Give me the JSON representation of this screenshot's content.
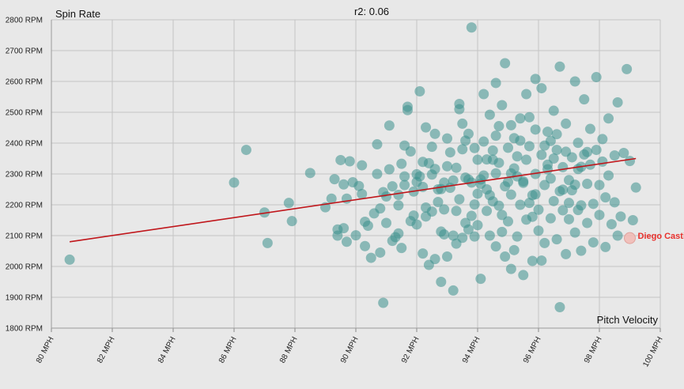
{
  "chart_data": {
    "type": "scatter",
    "title": "r2: 0.06",
    "xlabel": "Pitch Velocity",
    "ylabel": "Spin Rate",
    "xlim": [
      80,
      100
    ],
    "ylim": [
      1800,
      2800
    ],
    "x_ticks": [
      "80 MPH",
      "82 MPH",
      "84 MPH",
      "86 MPH",
      "88 MPH",
      "90 MPH",
      "92 MPH",
      "94 MPH",
      "96 MPH",
      "98 MPH",
      "100 MPH"
    ],
    "y_ticks": [
      "1800 RPM",
      "1900 RPM",
      "2000 RPM",
      "2100 RPM",
      "2200 RPM",
      "2300 RPM",
      "2400 RPM",
      "2500 RPM",
      "2600 RPM",
      "2700 RPM",
      "2800 RPM"
    ],
    "grid": true,
    "point_color": "#3a8f8c",
    "trendline_color": "#c0161b",
    "trendline": {
      "x": [
        80.6,
        99.2
      ],
      "y": [
        2080,
        2350
      ]
    },
    "highlight": {
      "name": "Diego Castillo",
      "x": 99.0,
      "y": 2092,
      "color": "#e8302c"
    },
    "points": [
      [
        80.6,
        2022
      ],
      [
        86.0,
        2272
      ],
      [
        86.4,
        2378
      ],
      [
        87.0,
        2175
      ],
      [
        87.1,
        2076
      ],
      [
        87.8,
        2206
      ],
      [
        87.9,
        2147
      ],
      [
        88.5,
        2303
      ],
      [
        89.0,
        2192
      ],
      [
        89.2,
        2220
      ],
      [
        89.3,
        2283
      ],
      [
        89.4,
        2120
      ],
      [
        89.4,
        2100
      ],
      [
        89.5,
        2345
      ],
      [
        89.6,
        2266
      ],
      [
        89.7,
        2220
      ],
      [
        89.7,
        2080
      ],
      [
        89.8,
        2341
      ],
      [
        89.9,
        2273
      ],
      [
        90.0,
        2101
      ],
      [
        90.2,
        2328
      ],
      [
        90.2,
        2235
      ],
      [
        90.3,
        2145
      ],
      [
        90.3,
        2066
      ],
      [
        90.5,
        2028
      ],
      [
        90.6,
        2172
      ],
      [
        90.7,
        2396
      ],
      [
        90.7,
        2300
      ],
      [
        90.8,
        2045
      ],
      [
        90.9,
        2241
      ],
      [
        91.0,
        2141
      ],
      [
        91.1,
        2315
      ],
      [
        91.2,
        2083
      ],
      [
        91.3,
        2095
      ],
      [
        91.4,
        2198
      ],
      [
        91.4,
        2232
      ],
      [
        91.5,
        2333
      ],
      [
        91.6,
        2392
      ],
      [
        91.6,
        2264
      ],
      [
        91.7,
        2507
      ],
      [
        91.7,
        2518
      ],
      [
        91.8,
        2373
      ],
      [
        91.9,
        2165
      ],
      [
        92.0,
        2274
      ],
      [
        92.0,
        2136
      ],
      [
        92.1,
        2292
      ],
      [
        92.1,
        2568
      ],
      [
        92.2,
        2258
      ],
      [
        92.2,
        2042
      ],
      [
        92.3,
        2451
      ],
      [
        92.3,
        2191
      ],
      [
        92.4,
        2005
      ],
      [
        92.5,
        2298
      ],
      [
        92.5,
        2178
      ],
      [
        92.6,
        2024
      ],
      [
        92.6,
        2430
      ],
      [
        92.7,
        2250
      ],
      [
        92.8,
        2113
      ],
      [
        92.8,
        1950
      ],
      [
        92.9,
        2104
      ],
      [
        92.9,
        2272
      ],
      [
        93.0,
        2032
      ],
      [
        93.0,
        2415
      ],
      [
        93.1,
        2255
      ],
      [
        93.2,
        2100
      ],
      [
        93.2,
        1922
      ],
      [
        93.3,
        2320
      ],
      [
        93.3,
        2180
      ],
      [
        93.4,
        2510
      ],
      [
        93.4,
        2218
      ],
      [
        93.5,
        2380
      ],
      [
        93.5,
        2093
      ],
      [
        93.6,
        2288
      ],
      [
        93.7,
        2430
      ],
      [
        93.7,
        2120
      ],
      [
        93.8,
        2272
      ],
      [
        93.8,
        2775
      ],
      [
        93.9,
        2201
      ],
      [
        93.9,
        2384
      ],
      [
        94.0,
        2346
      ],
      [
        94.0,
        2134
      ],
      [
        94.1,
        1960
      ],
      [
        94.1,
        2268
      ],
      [
        94.2,
        2295
      ],
      [
        94.2,
        2405
      ],
      [
        94.3,
        2180
      ],
      [
        94.3,
        2250
      ],
      [
        94.4,
        2100
      ],
      [
        94.4,
        2492
      ],
      [
        94.5,
        2376
      ],
      [
        94.5,
        2211
      ],
      [
        94.6,
        2065
      ],
      [
        94.6,
        2302
      ],
      [
        94.7,
        2455
      ],
      [
        94.7,
        2336
      ],
      [
        94.8,
        2167
      ],
      [
        94.8,
        2523
      ],
      [
        94.9,
        2260
      ],
      [
        94.9,
        2032
      ],
      [
        95.0,
        2385
      ],
      [
        95.0,
        2146
      ],
      [
        95.1,
        2233
      ],
      [
        95.1,
        2458
      ],
      [
        95.2,
        2318
      ],
      [
        95.2,
        2053
      ],
      [
        95.3,
        2292
      ],
      [
        95.3,
        2097
      ],
      [
        95.4,
        2200
      ],
      [
        95.4,
        2408
      ],
      [
        95.5,
        1972
      ],
      [
        95.5,
        2276
      ],
      [
        95.6,
        2346
      ],
      [
        95.6,
        2152
      ],
      [
        95.7,
        2390
      ],
      [
        95.7,
        2484
      ],
      [
        95.8,
        2231
      ],
      [
        95.8,
        2018
      ],
      [
        95.9,
        2444
      ],
      [
        95.9,
        2300
      ],
      [
        96.0,
        2184
      ],
      [
        96.0,
        2116
      ],
      [
        96.1,
        2362
      ],
      [
        96.1,
        2578
      ],
      [
        96.2,
        2264
      ],
      [
        96.2,
        2076
      ],
      [
        96.3,
        2330
      ],
      [
        96.3,
        2437
      ],
      [
        96.4,
        2156
      ],
      [
        96.4,
        2285
      ],
      [
        96.5,
        2505
      ],
      [
        96.5,
        2212
      ],
      [
        96.6,
        2088
      ],
      [
        96.6,
        2378
      ],
      [
        96.7,
        2244
      ],
      [
        96.7,
        2648
      ],
      [
        96.8,
        2322
      ],
      [
        96.8,
        2182
      ],
      [
        96.9,
        2040
      ],
      [
        96.9,
        2463
      ],
      [
        97.0,
        2280
      ],
      [
        97.0,
        2153
      ],
      [
        97.1,
        2354
      ],
      [
        97.1,
        2247
      ],
      [
        97.2,
        2600
      ],
      [
        97.2,
        2110
      ],
      [
        97.3,
        2401
      ],
      [
        97.3,
        2316
      ],
      [
        97.4,
        2198
      ],
      [
        97.4,
        2051
      ],
      [
        97.5,
        2542
      ],
      [
        97.5,
        2363
      ],
      [
        97.6,
        2268
      ],
      [
        97.6,
        2141
      ],
      [
        97.7,
        2446
      ],
      [
        97.7,
        2330
      ],
      [
        97.8,
        2203
      ],
      [
        97.8,
        2078
      ],
      [
        97.9,
        2614
      ],
      [
        97.9,
        2378
      ],
      [
        98.0,
        2264
      ],
      [
        98.0,
        2167
      ],
      [
        98.1,
        2413
      ],
      [
        98.1,
        2340
      ],
      [
        98.2,
        2224
      ],
      [
        98.2,
        2063
      ],
      [
        98.3,
        2480
      ],
      [
        98.3,
        2295
      ],
      [
        98.4,
        2137
      ],
      [
        98.5,
        2360
      ],
      [
        98.5,
        2208
      ],
      [
        98.6,
        2100
      ],
      [
        98.6,
        2532
      ],
      [
        98.7,
        2162
      ],
      [
        98.8,
        2368
      ],
      [
        98.9,
        2640
      ],
      [
        99.0,
        2342
      ],
      [
        99.2,
        2256
      ],
      [
        99.1,
        2150
      ],
      [
        93.5,
        2463
      ],
      [
        94.9,
        2659
      ],
      [
        95.6,
        2559
      ],
      [
        91.5,
        2060
      ],
      [
        92.7,
        2209
      ],
      [
        93.8,
        2164
      ],
      [
        94.6,
        2424
      ],
      [
        95.1,
        1992
      ],
      [
        95.9,
        2234
      ],
      [
        96.4,
        2407
      ],
      [
        90.8,
        2188
      ],
      [
        91.2,
        2260
      ],
      [
        92.4,
        2335
      ],
      [
        93.1,
        2370
      ],
      [
        93.6,
        2141
      ],
      [
        94.2,
        2559
      ],
      [
        94.8,
        2112
      ],
      [
        95.3,
        2357
      ],
      [
        96.1,
        2019
      ],
      [
        96.9,
        2372
      ],
      [
        97.3,
        2183
      ],
      [
        90.4,
        2132
      ],
      [
        91.9,
        2243
      ],
      [
        92.6,
        2316
      ],
      [
        93.3,
        2074
      ],
      [
        94.1,
        2282
      ],
      [
        94.7,
        2197
      ],
      [
        95.4,
        2480
      ],
      [
        96.2,
        2392
      ],
      [
        96.7,
        1868
      ],
      [
        91.4,
        2107
      ],
      [
        92.0,
        2299
      ],
      [
        92.8,
        2251
      ],
      [
        93.6,
        2408
      ],
      [
        94.3,
        2347
      ],
      [
        95.0,
        2274
      ],
      [
        95.8,
        2161
      ],
      [
        96.6,
        2429
      ],
      [
        97.4,
        2323
      ],
      [
        89.6,
        2124
      ],
      [
        90.9,
        1882
      ],
      [
        91.6,
        2292
      ],
      [
        92.3,
        2162
      ],
      [
        93.0,
        2325
      ],
      [
        93.7,
        2282
      ],
      [
        94.4,
        2231
      ],
      [
        95.2,
        2416
      ],
      [
        95.9,
        2608
      ],
      [
        96.8,
        2249
      ],
      [
        97.6,
        2371
      ],
      [
        90.1,
        2261
      ],
      [
        91.0,
        2227
      ],
      [
        91.8,
        2147
      ],
      [
        92.5,
        2388
      ],
      [
        93.2,
        2279
      ],
      [
        93.9,
        2097
      ],
      [
        94.5,
        2346
      ],
      [
        95.5,
        2271
      ],
      [
        96.3,
        2315
      ],
      [
        97.0,
        2206
      ],
      [
        92.2,
        2339
      ],
      [
        93.4,
        2527
      ],
      [
        94.0,
        2236
      ],
      [
        94.6,
        2595
      ],
      [
        95.1,
        2302
      ],
      [
        95.7,
        2206
      ],
      [
        96.5,
        2350
      ],
      [
        97.2,
        2265
      ],
      [
        91.1,
        2457
      ],
      [
        92.9,
        2185
      ]
    ]
  }
}
